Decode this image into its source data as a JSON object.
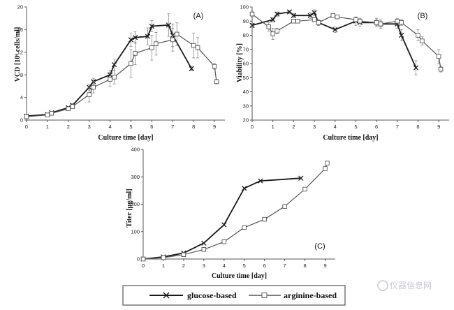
{
  "legend": {
    "glucose_label": "glucose-based",
    "arginine_label": "arginine-based"
  },
  "watermark": "仪器信息网",
  "colors": {
    "glucose": "#1a1a1a",
    "arginine": "#555555",
    "errorbar": "#888888"
  },
  "chart_data": [
    {
      "id": "A",
      "type": "line",
      "panel_label": "(A)",
      "xlabel": "Culture time [day]",
      "ylabel": "VCD [10⁶ cells/ml]",
      "xlim": [
        0,
        9.5
      ],
      "ylim": [
        0,
        20
      ],
      "xticks": [
        0,
        1,
        2,
        3,
        4,
        5,
        6,
        7,
        8,
        9
      ],
      "yticks": [
        0,
        4,
        8,
        12,
        16,
        20
      ],
      "series": [
        {
          "name": "glucose-based",
          "marker": "x",
          "x": [
            0,
            1,
            1.2,
            2,
            2.2,
            3,
            3.2,
            4,
            4.2,
            5,
            5.2,
            5.8,
            6,
            6.8,
            7,
            7.9
          ],
          "y": [
            0.7,
            1.0,
            1.3,
            2.2,
            2.6,
            5.8,
            6.8,
            8.0,
            9.8,
            14.2,
            14.6,
            14.8,
            16.6,
            16.8,
            15.0,
            9.1
          ],
          "err": [
            0.1,
            0.2,
            0.2,
            0.2,
            0.3,
            0.5,
            0.6,
            0.8,
            1.0,
            1.2,
            1.0,
            1.5,
            1.0,
            2.0,
            2.0,
            0.4
          ]
        },
        {
          "name": "arginine-based",
          "marker": "square",
          "x": [
            0,
            1,
            1.2,
            2,
            2.2,
            3,
            3.2,
            4,
            4.2,
            5,
            5.2,
            6,
            6.2,
            7,
            7.2,
            8,
            8.2,
            9,
            9.1
          ],
          "y": [
            0.6,
            0.9,
            1.2,
            2.0,
            2.4,
            4.5,
            5.8,
            7.2,
            7.6,
            10.0,
            11.8,
            12.8,
            13.5,
            14.2,
            15.2,
            13.2,
            12.8,
            9.5,
            6.8
          ],
          "err": [
            0.1,
            0.2,
            0.2,
            0.2,
            0.3,
            1.3,
            1.0,
            1.2,
            1.2,
            2.5,
            2.0,
            2.2,
            2.0,
            2.0,
            2.0,
            2.2,
            1.8,
            0.5,
            0.4
          ]
        }
      ]
    },
    {
      "id": "B",
      "type": "line",
      "panel_label": "(B)",
      "xlabel": "Culture time [day]",
      "ylabel": "Viability [%]",
      "xlim": [
        0,
        9.5
      ],
      "ylim": [
        20,
        100
      ],
      "xticks": [
        0,
        1,
        2,
        3,
        4,
        5,
        6,
        7,
        8,
        9
      ],
      "yticks": [
        20,
        30,
        40,
        50,
        60,
        70,
        80,
        90,
        100
      ],
      "series": [
        {
          "name": "glucose-based",
          "marker": "x",
          "x": [
            0,
            1,
            1.2,
            1.8,
            2,
            2.8,
            3,
            3.2,
            4,
            5,
            5.2,
            6,
            6.2,
            7,
            7.2,
            7.9
          ],
          "y": [
            87,
            91,
            95,
            96.5,
            94,
            94,
            96,
            89,
            84,
            90,
            89,
            89,
            88,
            88,
            80,
            57
          ],
          "err": [
            1.5,
            1.5,
            1.5,
            1,
            1.5,
            2,
            2,
            2,
            2,
            3,
            3,
            3,
            3,
            3,
            4,
            5
          ]
        },
        {
          "name": "arginine-based",
          "marker": "square",
          "x": [
            0,
            0.8,
            1,
            1.2,
            2,
            2.2,
            3,
            3.2,
            3.9,
            4.1,
            5,
            5.2,
            6,
            6.2,
            7,
            7.2,
            8,
            8.2,
            9,
            9.1
          ],
          "y": [
            95,
            86,
            81,
            83,
            90,
            90,
            91,
            89,
            94,
            93,
            91,
            90,
            89,
            88,
            90,
            89,
            80,
            76,
            65,
            56
          ],
          "err": [
            2,
            3,
            4,
            2,
            1,
            1,
            1.5,
            2,
            1,
            1,
            1.5,
            1.5,
            2,
            2,
            2,
            2,
            4,
            3,
            5,
            2
          ]
        }
      ]
    },
    {
      "id": "C",
      "type": "line",
      "panel_label": "(C)",
      "xlabel": "Culture time [day]",
      "ylabel": "Titer [µg/ml]",
      "xlim": [
        0,
        9.5
      ],
      "ylim": [
        0,
        400
      ],
      "xticks": [
        0,
        1,
        2,
        3,
        4,
        5,
        6,
        7,
        8,
        9
      ],
      "yticks": [
        0,
        100,
        200,
        300,
        400
      ],
      "series": [
        {
          "name": "glucose-based",
          "marker": "x",
          "x": [
            0,
            1,
            2,
            3,
            4,
            5,
            5.8,
            7.8
          ],
          "y": [
            0,
            8,
            22,
            58,
            125,
            258,
            285,
            295
          ],
          "err": []
        },
        {
          "name": "arginine-based",
          "marker": "square",
          "x": [
            0,
            1,
            2,
            3,
            4,
            5,
            6,
            7,
            8,
            9,
            9.1
          ],
          "y": [
            0,
            5,
            16,
            35,
            63,
            115,
            145,
            192,
            255,
            330,
            350
          ],
          "err": []
        }
      ]
    }
  ]
}
